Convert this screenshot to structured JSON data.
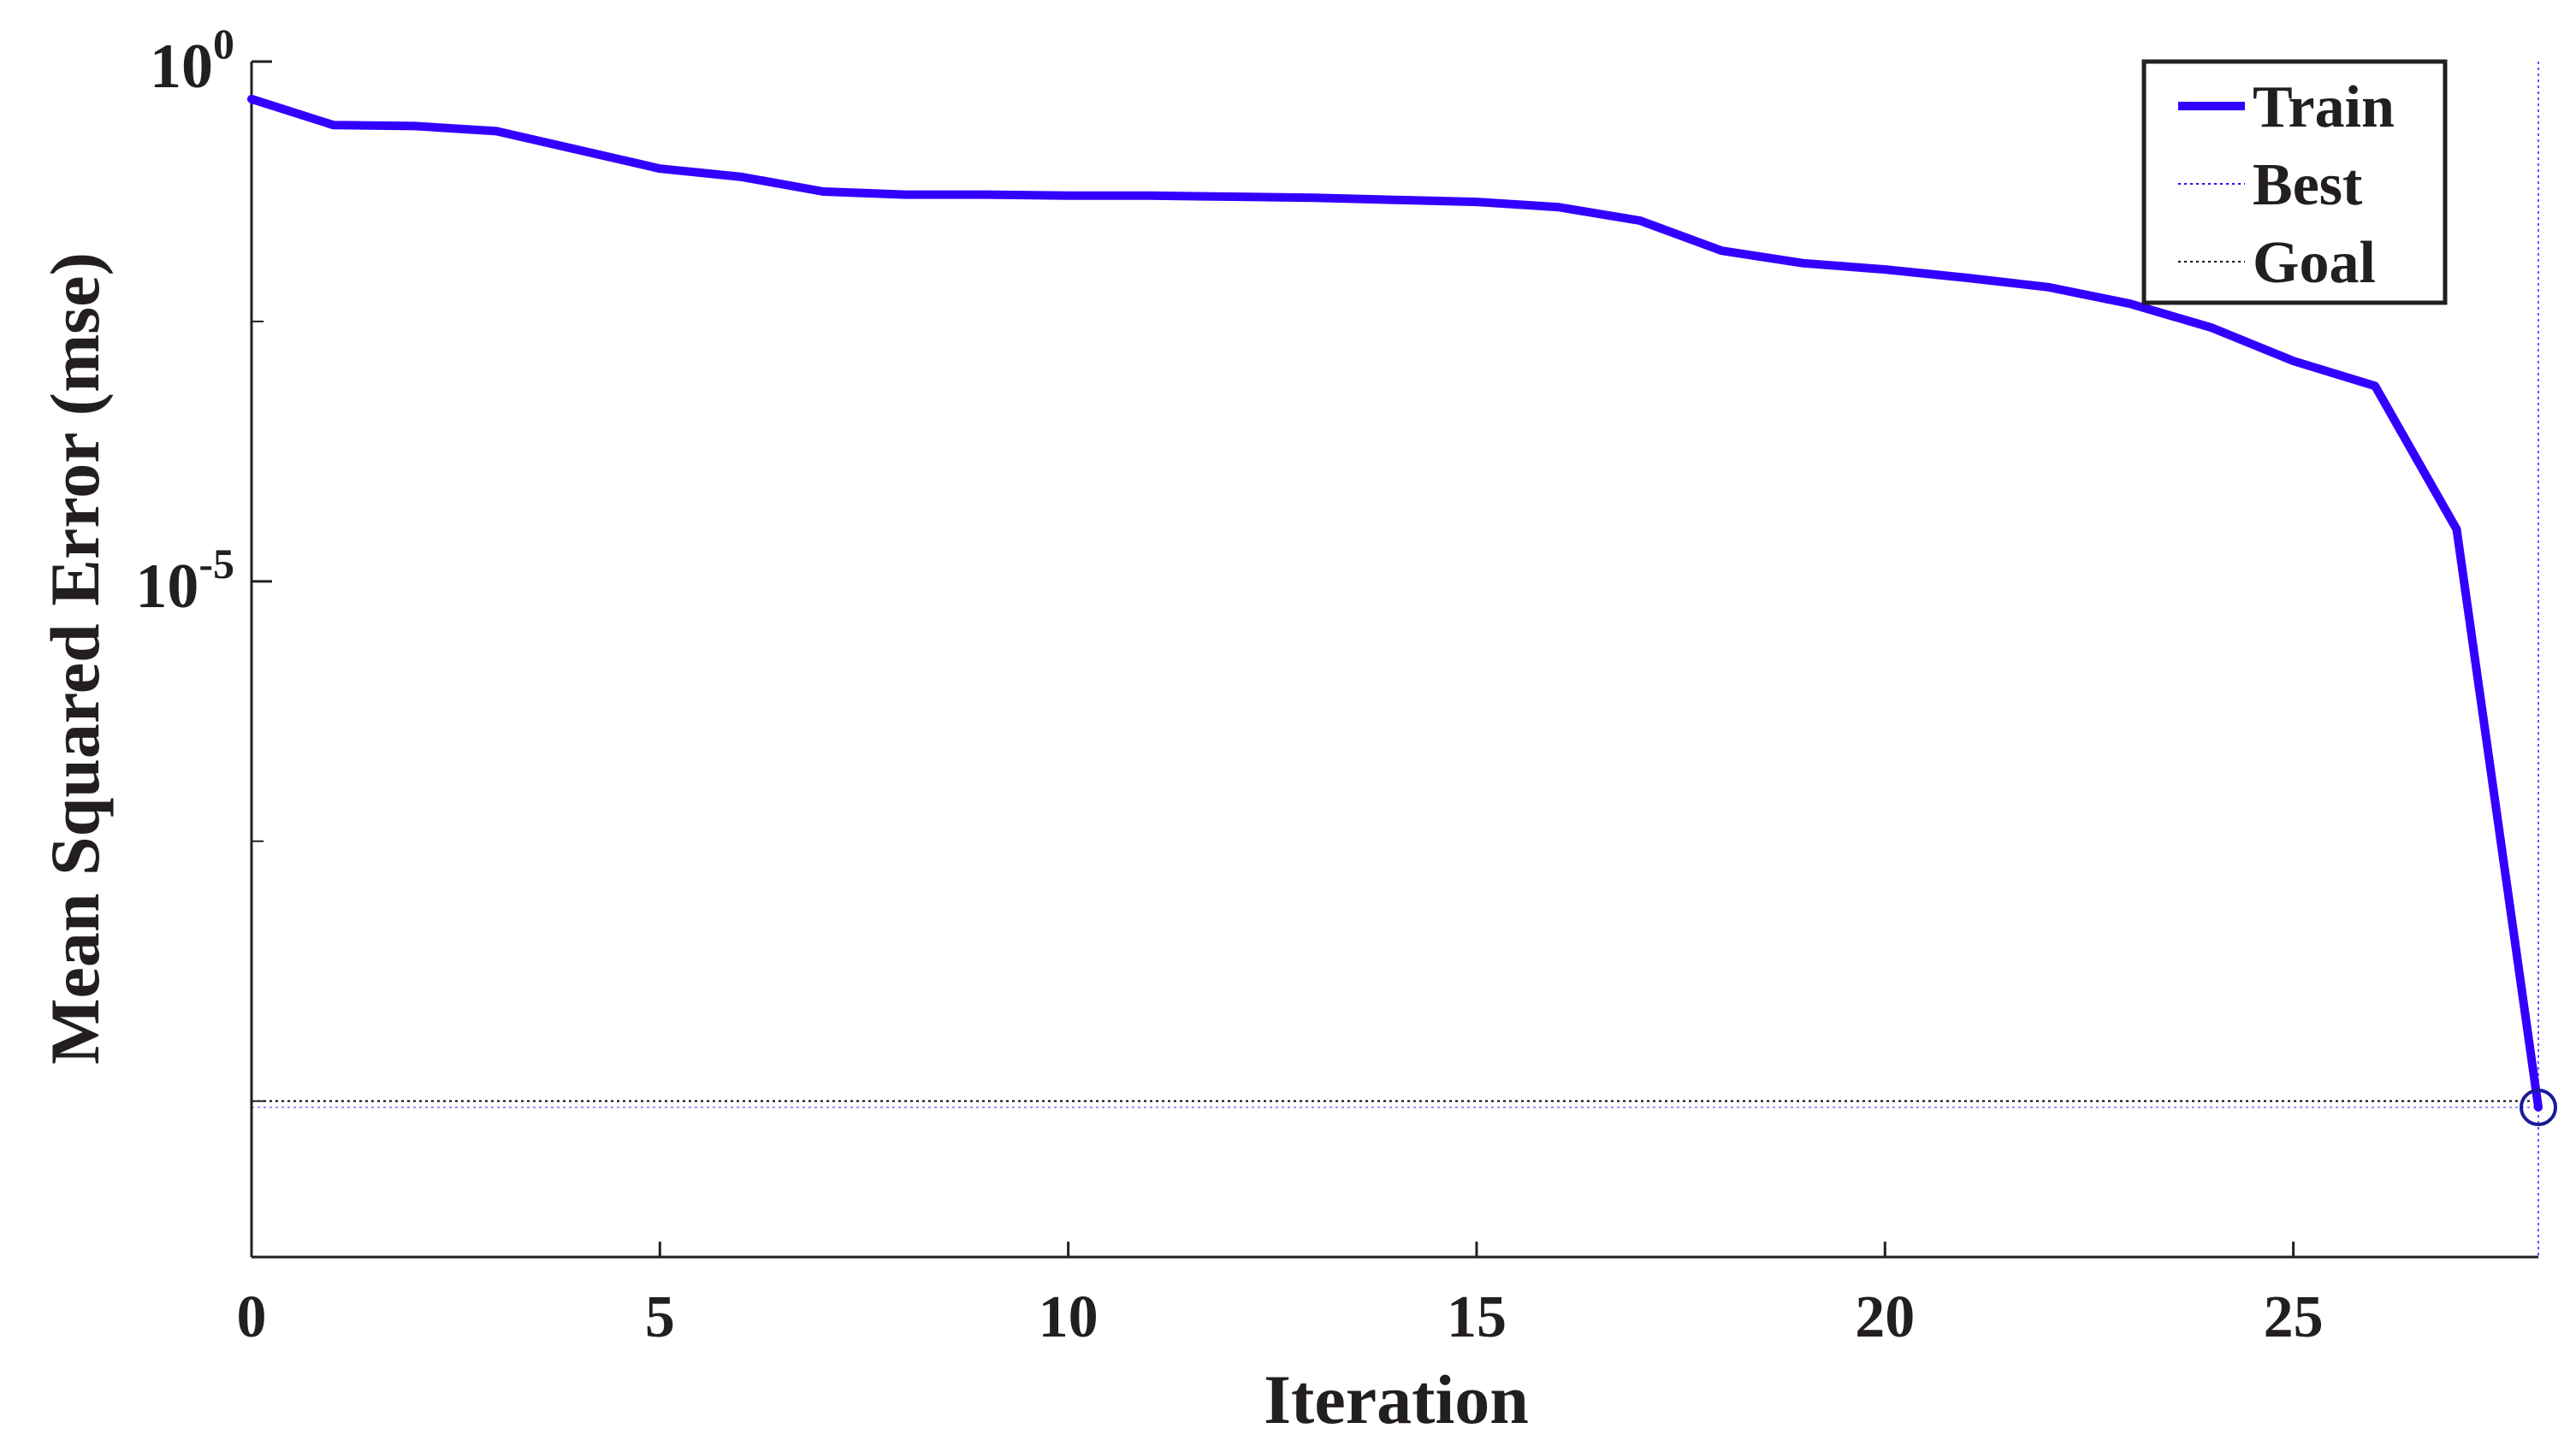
{
  "chart_data": {
    "type": "line",
    "xlabel": "Iteration",
    "ylabel": "Mean Squared Error  (mse)",
    "xlim": [
      0,
      28
    ],
    "ylim_log10": [
      -11.5,
      0
    ],
    "yscale": "log",
    "grid": false,
    "legend_position": "top-right",
    "x_ticks": [
      0,
      5,
      10,
      15,
      20,
      25
    ],
    "y_ticks": [
      {
        "base": "10",
        "exp": "0",
        "log10": 0
      },
      {
        "base": "10",
        "exp": "-5",
        "log10": -5
      }
    ],
    "series": [
      {
        "name": "Train",
        "color": "#3300ff",
        "x": [
          0,
          1,
          2,
          3,
          4,
          5,
          6,
          7,
          8,
          9,
          10,
          11,
          12,
          13,
          14,
          15,
          16,
          17,
          18,
          19,
          20,
          21,
          22,
          23,
          24,
          25,
          26,
          27,
          28
        ],
        "log10_y": [
          -0.36,
          -0.61,
          -0.62,
          -0.67,
          -0.85,
          -1.03,
          -1.11,
          -1.25,
          -1.28,
          -1.28,
          -1.29,
          -1.29,
          -1.3,
          -1.31,
          -1.33,
          -1.35,
          -1.4,
          -1.53,
          -1.82,
          -1.94,
          -2.0,
          -2.08,
          -2.17,
          -2.33,
          -2.56,
          -2.88,
          -3.12,
          -4.5,
          -10.06
        ]
      }
    ],
    "best": {
      "name": "Best",
      "x": 28,
      "log10_y": -10.06
    },
    "goal": {
      "name": "Goal",
      "log10_y": -10.0
    },
    "ref_color": "#000000"
  }
}
